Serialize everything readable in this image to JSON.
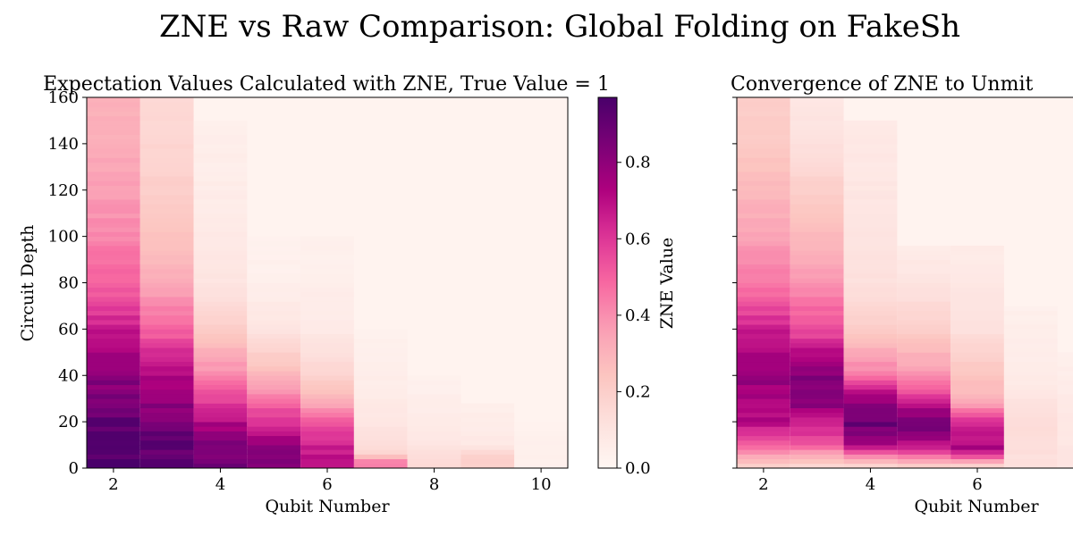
{
  "suptitle": "ZNE vs Raw Comparison: Global Folding on FakeSh",
  "colormap": {
    "name": "RdPu",
    "stops": [
      "#fff7f3",
      "#fde0dd",
      "#fcc5c0",
      "#fa9fb5",
      "#f768a1",
      "#dd3497",
      "#ae017e",
      "#7a0177",
      "#49006a"
    ]
  },
  "chart_data": [
    {
      "type": "heatmap",
      "title": "Expectation Values Calculated with ZNE, True Value = 1",
      "xlabel": "Qubit Number",
      "ylabel": "Circuit Depth",
      "xlim": [
        1.5,
        10.5
      ],
      "ylim": [
        0,
        160
      ],
      "x_ticks": [
        2,
        4,
        6,
        8,
        10
      ],
      "y_ticks": [
        0,
        20,
        40,
        60,
        80,
        100,
        120,
        140,
        160
      ],
      "qubits": [
        2,
        3,
        4,
        5,
        6,
        7,
        8,
        9,
        10
      ],
      "max_depth": [
        160,
        160,
        150,
        100,
        100,
        60,
        40,
        28,
        20
      ],
      "depth_step": 2,
      "value_profile": {
        "2": [
          [
            0,
            0.96
          ],
          [
            8,
            0.95
          ],
          [
            20,
            0.9
          ],
          [
            40,
            0.8
          ],
          [
            60,
            0.66
          ],
          [
            80,
            0.5
          ],
          [
            100,
            0.42
          ],
          [
            120,
            0.36
          ],
          [
            140,
            0.32
          ],
          [
            160,
            0.3
          ]
        ],
        "3": [
          [
            0,
            0.92
          ],
          [
            10,
            0.9
          ],
          [
            20,
            0.86
          ],
          [
            40,
            0.72
          ],
          [
            60,
            0.5
          ],
          [
            80,
            0.32
          ],
          [
            100,
            0.25
          ],
          [
            120,
            0.2
          ],
          [
            140,
            0.17
          ],
          [
            160,
            0.15
          ]
        ],
        "4": [
          [
            0,
            0.86
          ],
          [
            10,
            0.82
          ],
          [
            20,
            0.72
          ],
          [
            40,
            0.42
          ],
          [
            60,
            0.2
          ],
          [
            80,
            0.1
          ],
          [
            100,
            0.07
          ],
          [
            150,
            0.04
          ]
        ],
        "5": [
          [
            0,
            0.82
          ],
          [
            10,
            0.78
          ],
          [
            20,
            0.62
          ],
          [
            40,
            0.28
          ],
          [
            60,
            0.1
          ],
          [
            80,
            0.04
          ],
          [
            100,
            0.03
          ]
        ],
        "6": [
          [
            0,
            0.68
          ],
          [
            10,
            0.66
          ],
          [
            20,
            0.5
          ],
          [
            30,
            0.3
          ],
          [
            40,
            0.18
          ],
          [
            60,
            0.07
          ],
          [
            100,
            0.03
          ]
        ],
        "7": [
          [
            0,
            0.45
          ],
          [
            4,
            0.4
          ],
          [
            6,
            0.16
          ],
          [
            20,
            0.09
          ],
          [
            40,
            0.05
          ],
          [
            60,
            0.03
          ]
        ],
        "8": [
          [
            0,
            0.16
          ],
          [
            10,
            0.1
          ],
          [
            20,
            0.06
          ],
          [
            40,
            0.03
          ]
        ],
        "9": [
          [
            0,
            0.2
          ],
          [
            6,
            0.18
          ],
          [
            10,
            0.08
          ],
          [
            28,
            0.04
          ]
        ],
        "10": [
          [
            0,
            0.05
          ],
          [
            20,
            0.03
          ]
        ]
      }
    },
    {
      "type": "heatmap",
      "title": "Convergence of ZNE to Unmit",
      "xlabel": "Qubit Number",
      "x_ticks": [
        2,
        4,
        6
      ],
      "y_ticks": [
        0,
        20,
        40,
        60,
        80,
        100,
        120,
        140,
        160
      ],
      "xlim": [
        1.5,
        10.5
      ],
      "ylim": [
        0,
        160
      ],
      "qubits": [
        2,
        3,
        4,
        5,
        6,
        7,
        8
      ],
      "max_depth": [
        160,
        160,
        150,
        96,
        96,
        70,
        50
      ],
      "depth_step": 2,
      "value_profile": {
        "2": [
          [
            0,
            0.15
          ],
          [
            8,
            0.45
          ],
          [
            20,
            0.7
          ],
          [
            40,
            0.78
          ],
          [
            60,
            0.65
          ],
          [
            80,
            0.45
          ],
          [
            100,
            0.35
          ],
          [
            120,
            0.28
          ],
          [
            140,
            0.22
          ],
          [
            160,
            0.2
          ]
        ],
        "3": [
          [
            0,
            0.12
          ],
          [
            10,
            0.5
          ],
          [
            30,
            0.85
          ],
          [
            40,
            0.82
          ],
          [
            60,
            0.55
          ],
          [
            80,
            0.38
          ],
          [
            100,
            0.28
          ],
          [
            120,
            0.2
          ],
          [
            140,
            0.12
          ],
          [
            160,
            0.08
          ]
        ],
        "4": [
          [
            0,
            0.1
          ],
          [
            10,
            0.72
          ],
          [
            20,
            0.9
          ],
          [
            30,
            0.78
          ],
          [
            40,
            0.45
          ],
          [
            60,
            0.2
          ],
          [
            80,
            0.12
          ],
          [
            100,
            0.1
          ],
          [
            150,
            0.07
          ]
        ],
        "5": [
          [
            0,
            0.15
          ],
          [
            8,
            0.6
          ],
          [
            18,
            0.92
          ],
          [
            30,
            0.62
          ],
          [
            40,
            0.38
          ],
          [
            60,
            0.2
          ],
          [
            80,
            0.1
          ],
          [
            96,
            0.06
          ]
        ],
        "6": [
          [
            0,
            0.1
          ],
          [
            8,
            0.75
          ],
          [
            20,
            0.6
          ],
          [
            30,
            0.3
          ],
          [
            40,
            0.25
          ],
          [
            60,
            0.12
          ],
          [
            96,
            0.06
          ]
        ],
        "7": [
          [
            0,
            0.12
          ],
          [
            20,
            0.14
          ],
          [
            40,
            0.06
          ],
          [
            70,
            0.04
          ]
        ],
        "8": [
          [
            0,
            0.1
          ],
          [
            20,
            0.08
          ],
          [
            50,
            0.04
          ]
        ]
      }
    }
  ],
  "colorbar": {
    "label": "ZNE Value",
    "ticks": [
      "0.0",
      "0.2",
      "0.4",
      "0.6",
      "0.8"
    ],
    "tick_values": [
      0,
      0.2,
      0.4,
      0.6,
      0.8
    ],
    "range": [
      0,
      0.97
    ]
  }
}
